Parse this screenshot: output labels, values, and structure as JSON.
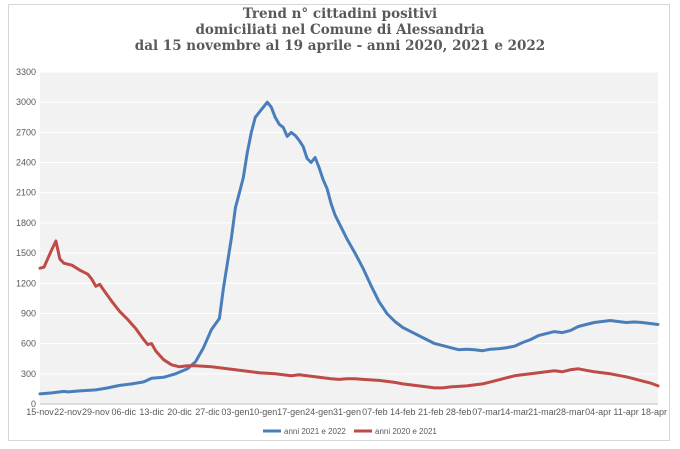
{
  "chart_data": {
    "type": "line",
    "title_lines": [
      "Trend n° cittadini positivi",
      "domiciliati nel Comune di Alessandria",
      "dal 15 novembre al 19 aprile - anni 2020, 2021 e 2022"
    ],
    "xlabel": "",
    "ylabel": "",
    "ylim": [
      0,
      3300
    ],
    "yticks": [
      0,
      300,
      600,
      900,
      1200,
      1500,
      1800,
      2100,
      2400,
      2700,
      3000,
      3300
    ],
    "x_range_days": [
      0,
      155
    ],
    "xticks": [
      {
        "day": 0,
        "label": "15-nov"
      },
      {
        "day": 7,
        "label": "22-nov"
      },
      {
        "day": 14,
        "label": "29-nov"
      },
      {
        "day": 21,
        "label": "06-dic"
      },
      {
        "day": 28,
        "label": "13-dic"
      },
      {
        "day": 35,
        "label": "20-dic"
      },
      {
        "day": 42,
        "label": "27-dic"
      },
      {
        "day": 49,
        "label": "03-gen"
      },
      {
        "day": 56,
        "label": "10-gen"
      },
      {
        "day": 63,
        "label": "17-gen"
      },
      {
        "day": 70,
        "label": "24-gen"
      },
      {
        "day": 77,
        "label": "31-gen"
      },
      {
        "day": 84,
        "label": "07-feb"
      },
      {
        "day": 91,
        "label": "14-feb"
      },
      {
        "day": 98,
        "label": "21-feb"
      },
      {
        "day": 105,
        "label": "28-feb"
      },
      {
        "day": 112,
        "label": "07-mar"
      },
      {
        "day": 119,
        "label": "14-mar"
      },
      {
        "day": 126,
        "label": "21-mar"
      },
      {
        "day": 133,
        "label": "28-mar"
      },
      {
        "day": 140,
        "label": "04-apr"
      },
      {
        "day": 147,
        "label": "11-apr"
      },
      {
        "day": 154,
        "label": "18-apr"
      }
    ],
    "grid": true,
    "legend_position": "bottom",
    "series": [
      {
        "name": "anni 2021 e 2022",
        "color": "#4a7ebb",
        "points": [
          [
            0,
            100
          ],
          [
            3,
            110
          ],
          [
            6,
            125
          ],
          [
            7,
            120
          ],
          [
            10,
            130
          ],
          [
            14,
            140
          ],
          [
            17,
            160
          ],
          [
            20,
            185
          ],
          [
            23,
            200
          ],
          [
            26,
            220
          ],
          [
            28,
            255
          ],
          [
            31,
            265
          ],
          [
            34,
            300
          ],
          [
            37,
            350
          ],
          [
            39,
            420
          ],
          [
            41,
            560
          ],
          [
            43,
            740
          ],
          [
            45,
            850
          ],
          [
            46,
            1150
          ],
          [
            47,
            1400
          ],
          [
            48,
            1650
          ],
          [
            49,
            1950
          ],
          [
            50,
            2100
          ],
          [
            51,
            2250
          ],
          [
            52,
            2500
          ],
          [
            53,
            2700
          ],
          [
            54,
            2850
          ],
          [
            55,
            2900
          ],
          [
            56,
            2950
          ],
          [
            57,
            3000
          ],
          [
            58,
            2950
          ],
          [
            59,
            2850
          ],
          [
            60,
            2780
          ],
          [
            61,
            2750
          ],
          [
            62,
            2660
          ],
          [
            63,
            2700
          ],
          [
            64,
            2670
          ],
          [
            65,
            2620
          ],
          [
            66,
            2560
          ],
          [
            67,
            2440
          ],
          [
            68,
            2400
          ],
          [
            69,
            2450
          ],
          [
            70,
            2350
          ],
          [
            71,
            2230
          ],
          [
            72,
            2140
          ],
          [
            73,
            1990
          ],
          [
            74,
            1880
          ],
          [
            75,
            1800
          ],
          [
            77,
            1640
          ],
          [
            79,
            1500
          ],
          [
            81,
            1350
          ],
          [
            83,
            1180
          ],
          [
            85,
            1020
          ],
          [
            87,
            900
          ],
          [
            89,
            820
          ],
          [
            91,
            760
          ],
          [
            93,
            720
          ],
          [
            95,
            680
          ],
          [
            97,
            640
          ],
          [
            99,
            600
          ],
          [
            101,
            580
          ],
          [
            103,
            560
          ],
          [
            105,
            540
          ],
          [
            107,
            545
          ],
          [
            109,
            540
          ],
          [
            111,
            530
          ],
          [
            113,
            545
          ],
          [
            115,
            550
          ],
          [
            117,
            560
          ],
          [
            119,
            575
          ],
          [
            121,
            610
          ],
          [
            123,
            640
          ],
          [
            125,
            680
          ],
          [
            127,
            700
          ],
          [
            129,
            720
          ],
          [
            131,
            710
          ],
          [
            133,
            730
          ],
          [
            135,
            770
          ],
          [
            137,
            790
          ],
          [
            139,
            810
          ],
          [
            141,
            820
          ],
          [
            143,
            830
          ],
          [
            145,
            820
          ],
          [
            147,
            810
          ],
          [
            149,
            815
          ],
          [
            151,
            810
          ],
          [
            153,
            800
          ],
          [
            155,
            790
          ]
        ]
      },
      {
        "name": "anni 2020 e 2021",
        "color": "#be4b48",
        "points": [
          [
            0,
            1350
          ],
          [
            1,
            1360
          ],
          [
            2,
            1450
          ],
          [
            3,
            1540
          ],
          [
            4,
            1620
          ],
          [
            5,
            1440
          ],
          [
            6,
            1400
          ],
          [
            8,
            1380
          ],
          [
            10,
            1330
          ],
          [
            12,
            1290
          ],
          [
            13,
            1240
          ],
          [
            14,
            1170
          ],
          [
            15,
            1190
          ],
          [
            16,
            1130
          ],
          [
            18,
            1020
          ],
          [
            20,
            920
          ],
          [
            22,
            840
          ],
          [
            24,
            750
          ],
          [
            26,
            640
          ],
          [
            27,
            590
          ],
          [
            28,
            600
          ],
          [
            29,
            530
          ],
          [
            31,
            440
          ],
          [
            33,
            390
          ],
          [
            35,
            370
          ],
          [
            37,
            380
          ],
          [
            39,
            380
          ],
          [
            41,
            375
          ],
          [
            43,
            370
          ],
          [
            45,
            360
          ],
          [
            47,
            350
          ],
          [
            49,
            340
          ],
          [
            51,
            330
          ],
          [
            53,
            320
          ],
          [
            55,
            310
          ],
          [
            57,
            305
          ],
          [
            59,
            300
          ],
          [
            61,
            290
          ],
          [
            63,
            280
          ],
          [
            65,
            290
          ],
          [
            67,
            280
          ],
          [
            69,
            270
          ],
          [
            71,
            260
          ],
          [
            73,
            250
          ],
          [
            75,
            245
          ],
          [
            77,
            250
          ],
          [
            79,
            250
          ],
          [
            81,
            245
          ],
          [
            83,
            240
          ],
          [
            85,
            235
          ],
          [
            87,
            225
          ],
          [
            89,
            215
          ],
          [
            91,
            200
          ],
          [
            93,
            190
          ],
          [
            95,
            180
          ],
          [
            97,
            170
          ],
          [
            99,
            160
          ],
          [
            101,
            160
          ],
          [
            103,
            170
          ],
          [
            105,
            175
          ],
          [
            107,
            180
          ],
          [
            109,
            190
          ],
          [
            111,
            200
          ],
          [
            113,
            220
          ],
          [
            115,
            240
          ],
          [
            117,
            260
          ],
          [
            119,
            280
          ],
          [
            121,
            290
          ],
          [
            123,
            300
          ],
          [
            125,
            310
          ],
          [
            127,
            320
          ],
          [
            129,
            330
          ],
          [
            131,
            320
          ],
          [
            133,
            340
          ],
          [
            135,
            350
          ],
          [
            137,
            335
          ],
          [
            139,
            320
          ],
          [
            141,
            310
          ],
          [
            143,
            300
          ],
          [
            145,
            285
          ],
          [
            147,
            270
          ],
          [
            149,
            250
          ],
          [
            151,
            230
          ],
          [
            153,
            210
          ],
          [
            155,
            180
          ]
        ]
      }
    ]
  }
}
